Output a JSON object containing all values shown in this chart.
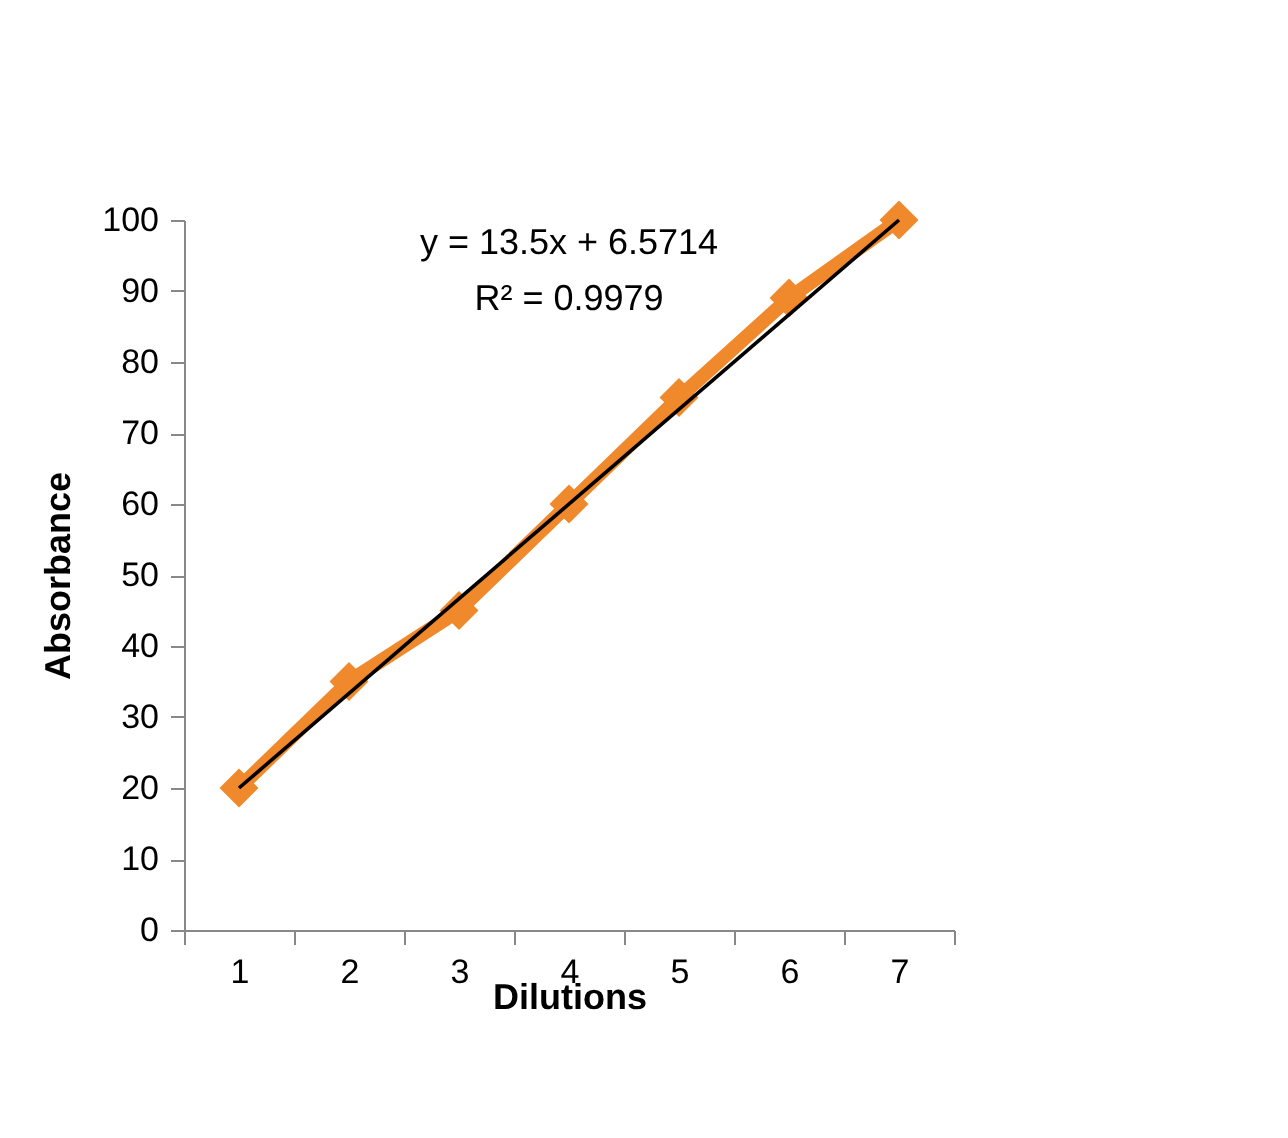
{
  "chart_data": {
    "type": "line",
    "xlabel": "Dilutions",
    "ylabel": "Absorbance",
    "categories": [
      "1",
      "2",
      "3",
      "4",
      "5",
      "6",
      "7"
    ],
    "series": [
      {
        "color": "#f0892b",
        "values": [
          20,
          35,
          45,
          60,
          75,
          89,
          100
        ],
        "marker": "diamond"
      },
      {
        "type": "line",
        "color": "#000000",
        "x": [
          "1",
          "7"
        ],
        "values": [
          20,
          100
        ],
        "marker": "none"
      }
    ],
    "ylim": [
      0,
      100
    ],
    "yticks": [
      0,
      10,
      20,
      30,
      40,
      50,
      60,
      70,
      80,
      90,
      100
    ],
    "annotations": [
      "y = 13.5x + 6.5714",
      "R² = 0.9979"
    ],
    "grid": false,
    "line_style": "solid"
  }
}
